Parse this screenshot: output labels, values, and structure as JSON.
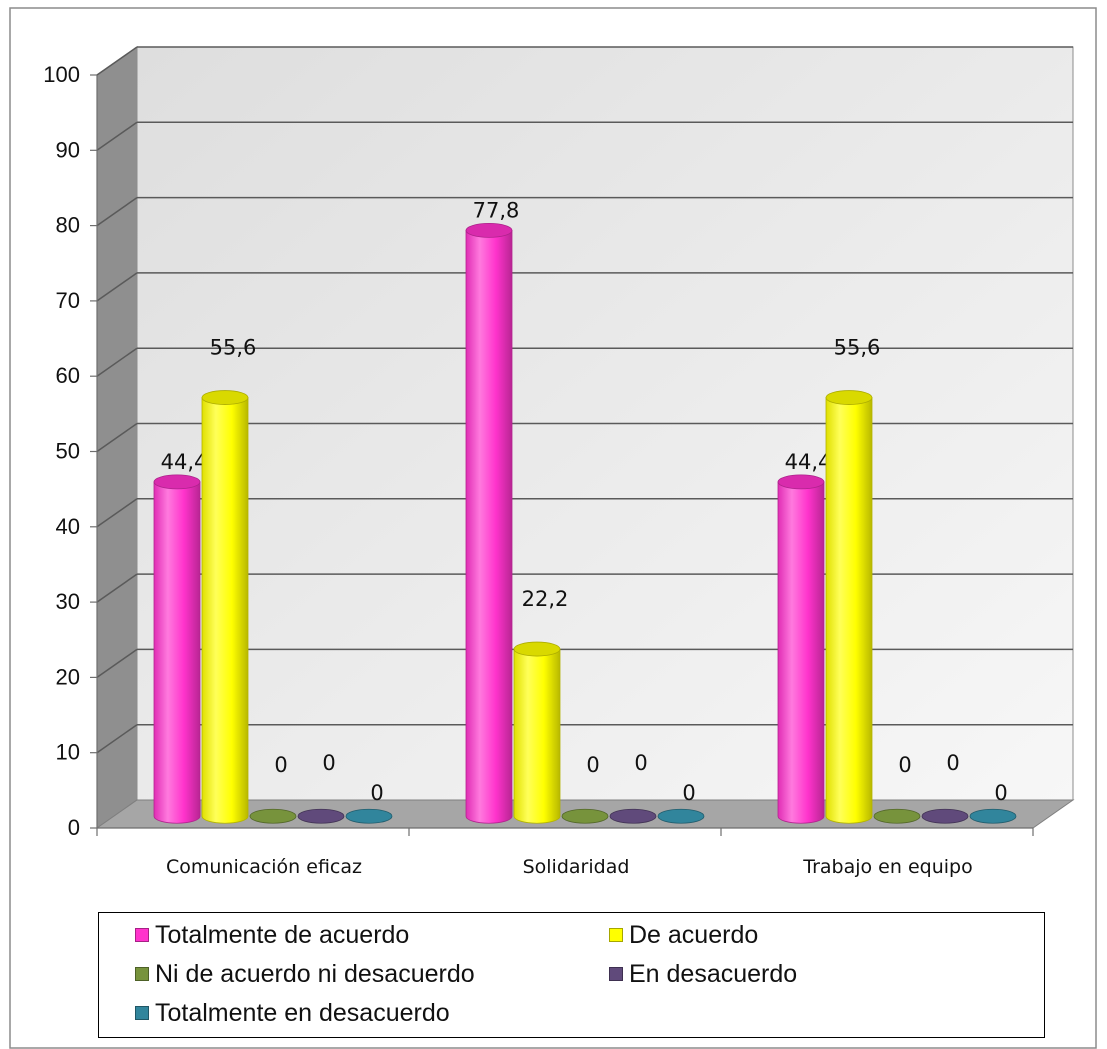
{
  "chart_data": {
    "type": "bar",
    "categories": [
      "Comunicación eficaz",
      "Solidaridad",
      "Trabajo en equipo"
    ],
    "series": [
      {
        "name": "Totalmente de acuerdo",
        "values": [
          44.4,
          77.8,
          44.4
        ],
        "labels": [
          "44,4",
          "77,8",
          "44,4"
        ],
        "color": "#ff33cc"
      },
      {
        "name": "De acuerdo",
        "values": [
          55.6,
          22.2,
          55.6
        ],
        "labels": [
          "55,6",
          "22,2",
          "55,6"
        ],
        "color": "#ffff00"
      },
      {
        "name": "Ni de acuerdo ni desacuerdo",
        "values": [
          0,
          0,
          0
        ],
        "labels": [
          "0",
          "0",
          "0"
        ],
        "color": "#77933c"
      },
      {
        "name": "En desacuerdo",
        "values": [
          0,
          0,
          0
        ],
        "labels": [
          "0",
          "0",
          "0"
        ],
        "color": "#604a7b"
      },
      {
        "name": "Totalmente en desacuerdo",
        "values": [
          0,
          0,
          0
        ],
        "labels": [
          "0",
          "0",
          "0"
        ],
        "color": "#31859c"
      }
    ],
    "yticks": [
      "0",
      "10",
      "20",
      "30",
      "40",
      "50",
      "60",
      "70",
      "80",
      "90",
      "100"
    ],
    "ylim": [
      0,
      100
    ],
    "grid": true,
    "legend_position": "bottom"
  }
}
